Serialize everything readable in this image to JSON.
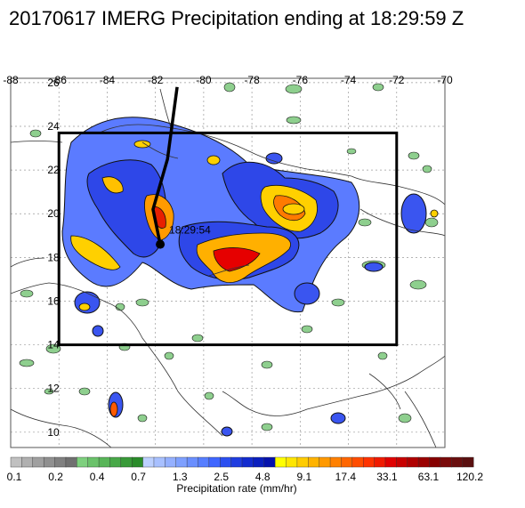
{
  "title": "20170617 IMERG Precipitation ending at 18:29:59 Z",
  "map": {
    "lon_ticks": [
      "-88",
      "-86",
      "-84",
      "-82",
      "-80",
      "-78",
      "-76",
      "-74",
      "-72",
      "-70"
    ],
    "lat_ticks": [
      "10",
      "12",
      "14",
      "16",
      "18",
      "20",
      "22",
      "24",
      "26"
    ],
    "lon_range": [
      -88,
      -70
    ],
    "lat_range": [
      9.3,
      26.2
    ],
    "analysis_box": {
      "lon": [
        -86,
        -72
      ],
      "lat": [
        14,
        23.7
      ]
    },
    "storm_label": "18:29:54",
    "storm_position": {
      "lon": -81.8,
      "lat": 18.6
    },
    "track": [
      {
        "lon": -81.1,
        "lat": 25.8
      },
      {
        "lon": -81.5,
        "lat": 22.5
      },
      {
        "lon": -82.1,
        "lat": 20.2
      },
      {
        "lon": -81.8,
        "lat": 18.6
      }
    ],
    "map_type": "satellite precipitation rate map"
  },
  "colorbar": {
    "title": "Precipitation rate (mm/hr)",
    "labels": [
      "0.1",
      "0.2",
      "0.4",
      "0.7",
      "1.3",
      "2.5",
      "4.8",
      "9.1",
      "17.4",
      "33.1",
      "63.1",
      "120.2"
    ],
    "colors": [
      "#c0c0c0",
      "#b0b0b0",
      "#a0a0a0",
      "#909090",
      "#808080",
      "#707070",
      "#7ed07e",
      "#6ac26a",
      "#58b558",
      "#48a848",
      "#389a38",
      "#2a8c2a",
      "#bcd0ff",
      "#a8c0ff",
      "#94b0ff",
      "#7ea0ff",
      "#6a8fff",
      "#567eff",
      "#3f66ff",
      "#2b4ff0",
      "#1f3de0",
      "#122bcf",
      "#0a1fbe",
      "#0512ac",
      "#ffff00",
      "#ffe600",
      "#ffcc00",
      "#ffb300",
      "#ff9900",
      "#ff8000",
      "#ff6600",
      "#ff4d00",
      "#ff3300",
      "#f01a00",
      "#e00000",
      "#c80000",
      "#b00000",
      "#9a0000",
      "#860000",
      "#7a0a0a",
      "#6a0f0f",
      "#5a1010"
    ]
  }
}
